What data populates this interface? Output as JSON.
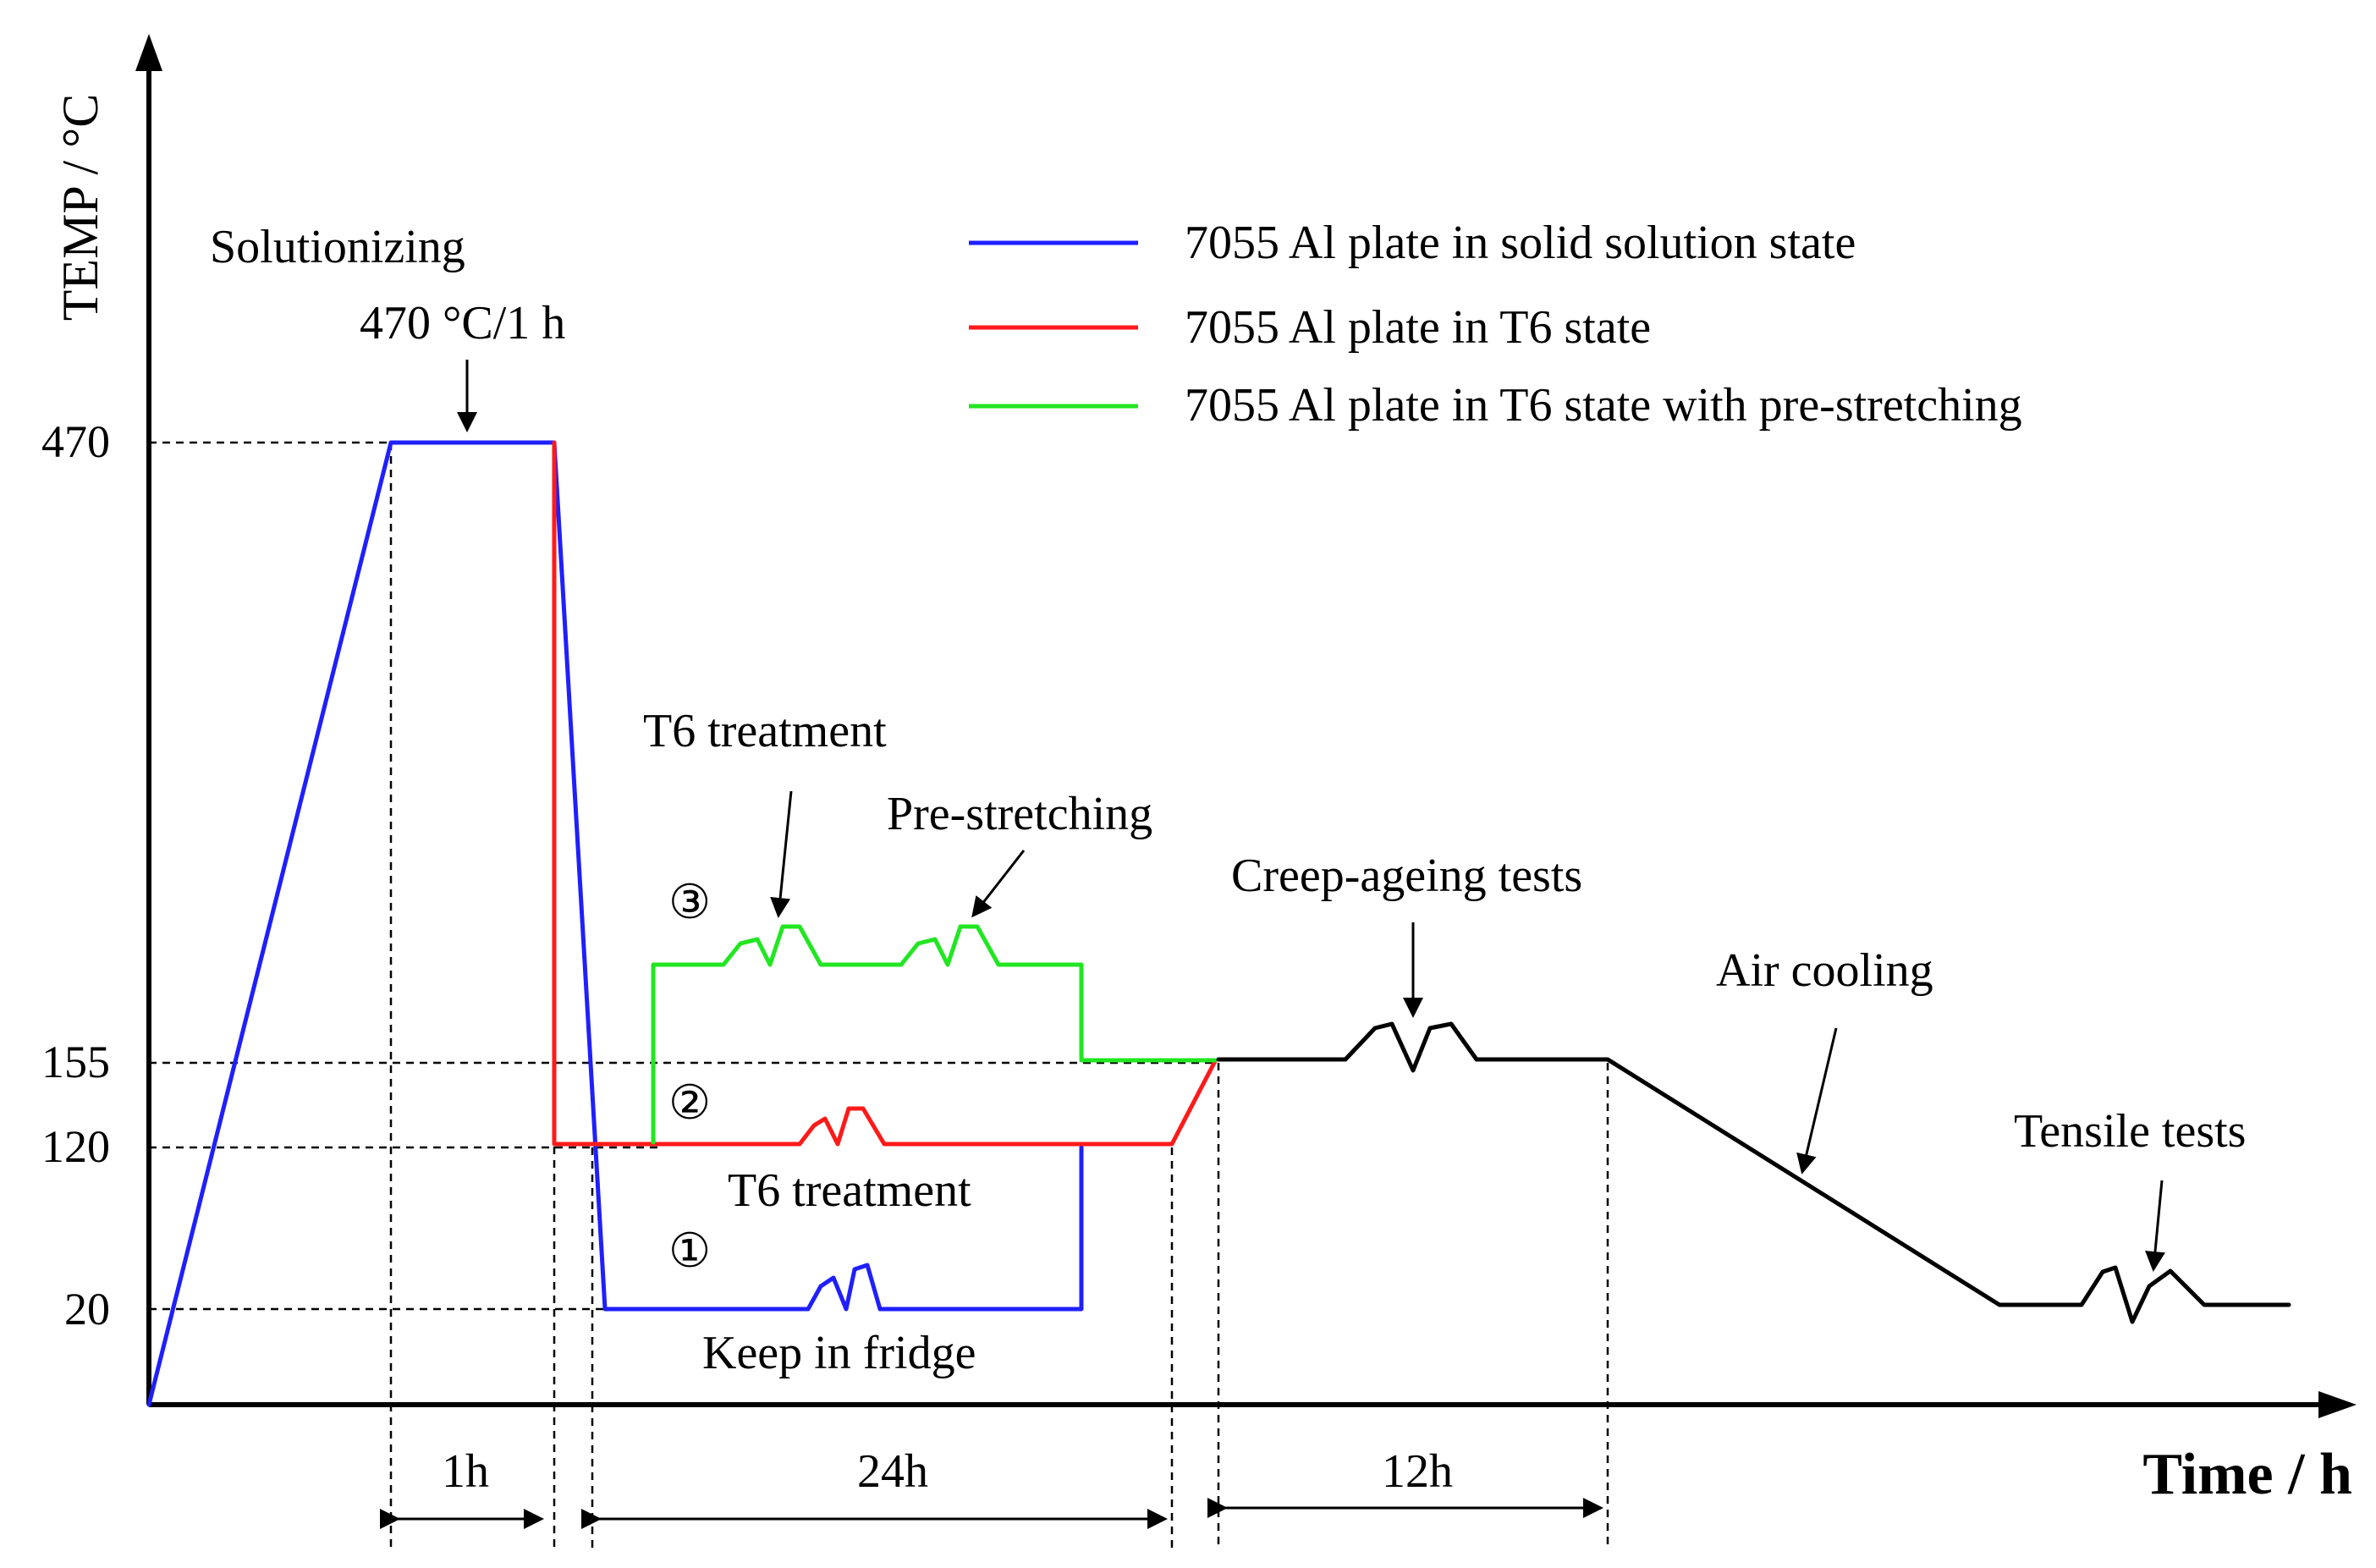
{
  "axes": {
    "y_title": "TEMP / °C",
    "x_title": "Time / h",
    "y_ticks": [
      "470",
      "155",
      "120",
      "20"
    ]
  },
  "legend": [
    {
      "label": "7055 Al plate in solid solution state",
      "color": "#1f1fff"
    },
    {
      "label": "7055 Al plate in T6 state",
      "color": "#ff1a1a"
    },
    {
      "label": "7055 Al plate in T6 state with pre-stretching",
      "color": "#22e622"
    }
  ],
  "colors": {
    "blue": "#1f1fff",
    "red": "#ff1a1a",
    "green": "#22e622",
    "black": "#000000"
  },
  "annotations": {
    "solutionizing": "Solutionizing",
    "solution_temp": "470 °C/1 h",
    "t6_treatment_top": "T6 treatment",
    "pre_stretching": "Pre-stretching",
    "creep_ageing": "Creep-ageing tests",
    "air_cooling": "Air cooling",
    "tensile_tests": "Tensile tests",
    "t6_treatment_mid": "T6 treatment",
    "keep_in_fridge": "Keep in fridge",
    "route_1": "①",
    "route_2": "②",
    "route_3": "③"
  },
  "durations": {
    "d1": "1h",
    "d2": "24h",
    "d3": "12h"
  }
}
